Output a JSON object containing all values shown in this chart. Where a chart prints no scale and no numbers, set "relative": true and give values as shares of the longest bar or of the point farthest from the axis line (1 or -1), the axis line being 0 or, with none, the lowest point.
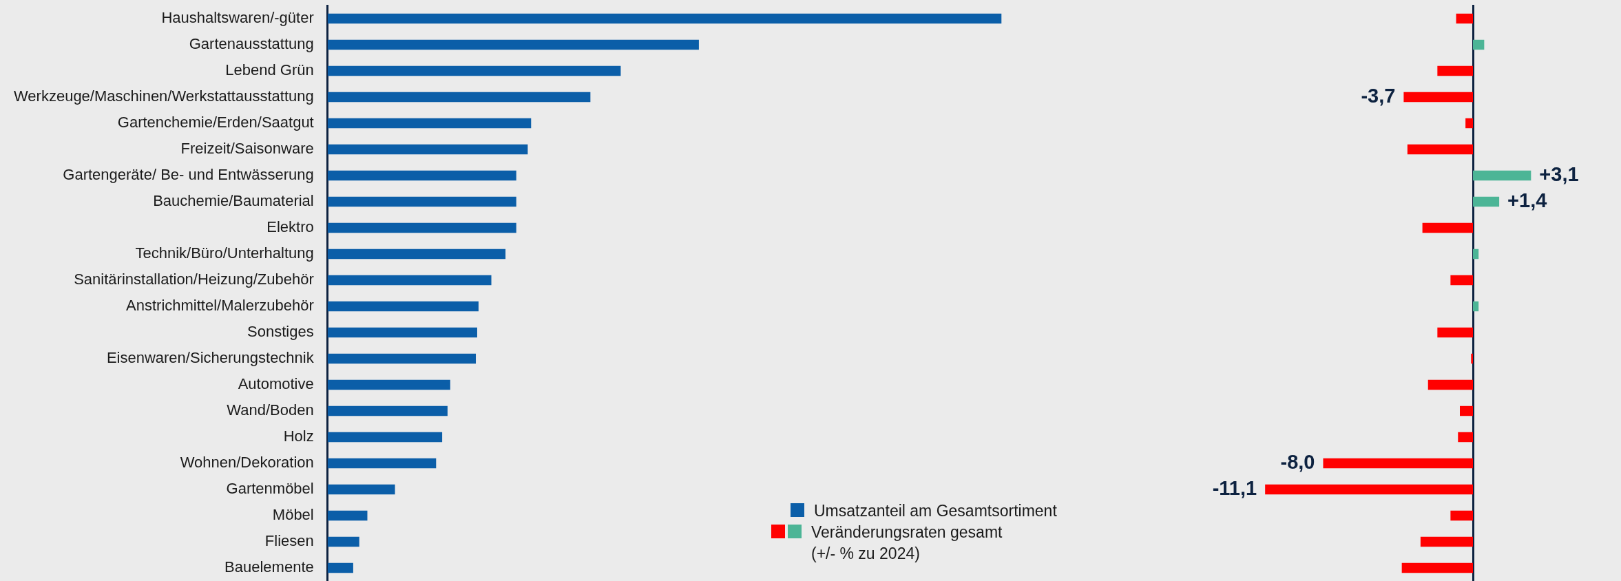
{
  "chart_data": [
    {
      "type": "bar",
      "orientation": "horizontal",
      "relative": true,
      "tick_labels": "y",
      "legend": "bottom right",
      "categories": [
        "Haushaltswaren/-güter",
        "Gartenausstattung",
        "Lebend Grün",
        "Werkzeuge/Maschinen/Werkstattausstattung",
        "Gartenchemie/Erden/Saatgut",
        "Freizeit/Saisonware",
        "Gartengeräte/ Be- und Entwässerung",
        "Bauchemie/Baumaterial",
        "Elektro",
        "Technik/Büro/Unterhaltung",
        "Sanitärinstallation/Heizung/Zubehör",
        "Anstrichmittel/Malerzubehör",
        "Sonstiges",
        "Eisenwaren/Sicherungstechnik",
        "Automotive",
        "Wand/Boden",
        "Holz",
        "Wohnen/Dekoration",
        "Gartenmöbel",
        "Möbel",
        "Fliesen",
        "Bauelemente"
      ],
      "series": [
        {
          "name": "Umsatzanteil am Gesamtsortiment",
          "color": "#0b5ea8",
          "values": [
            1,
            0.551,
            0.435,
            0.39,
            0.302,
            0.297,
            0.28,
            0.28,
            0.28,
            0.264,
            0.243,
            0.224,
            0.222,
            0.22,
            0.182,
            0.178,
            0.17,
            0.161,
            0.1,
            0.059,
            0.047,
            0.038
          ]
        }
      ]
    },
    {
      "type": "bar",
      "orientation": "horizontal",
      "tick_labels": false,
      "legend": "bottom left",
      "categories": [
        null,
        null,
        null,
        null,
        null,
        null,
        null,
        null,
        null,
        null,
        null,
        null,
        null,
        null,
        null,
        null,
        null,
        null,
        null,
        null,
        null,
        null
      ],
      "series": [
        {
          "name": "Veränderungsraten gesamt\n(+/- % zu 2024)",
          "colors": [
            "#ff0000",
            "#4cb596",
            "#ff0000",
            "#ff0000",
            "#ff0000",
            "#ff0000",
            "#4cb596",
            "#4cb596",
            "#ff0000",
            "#4cb596",
            "#ff0000",
            "#4cb596",
            "#ff0000",
            "#ff0000",
            "#ff0000",
            "#ff0000",
            "#ff0000",
            "#ff0000",
            "#ff0000",
            "#ff0000",
            "#ff0000",
            "#ff0000"
          ],
          "values": [
            -0.9,
            0.6,
            -1.9,
            -3.7,
            -0.4,
            -3.5,
            3.1,
            1.4,
            -2.7,
            0.3,
            -1.2,
            0.3,
            -1.9,
            -0.1,
            -2.4,
            -0.7,
            -0.8,
            -8.0,
            -11.1,
            -1.2,
            -2.8,
            -3.8
          ],
          "value_labels": [
            null,
            null,
            null,
            "-3,7",
            null,
            null,
            "+3,1",
            "+1,4",
            null,
            null,
            null,
            null,
            null,
            null,
            null,
            null,
            null,
            "-8,0",
            "-11,1",
            null,
            null,
            null
          ]
        }
      ]
    }
  ]
}
